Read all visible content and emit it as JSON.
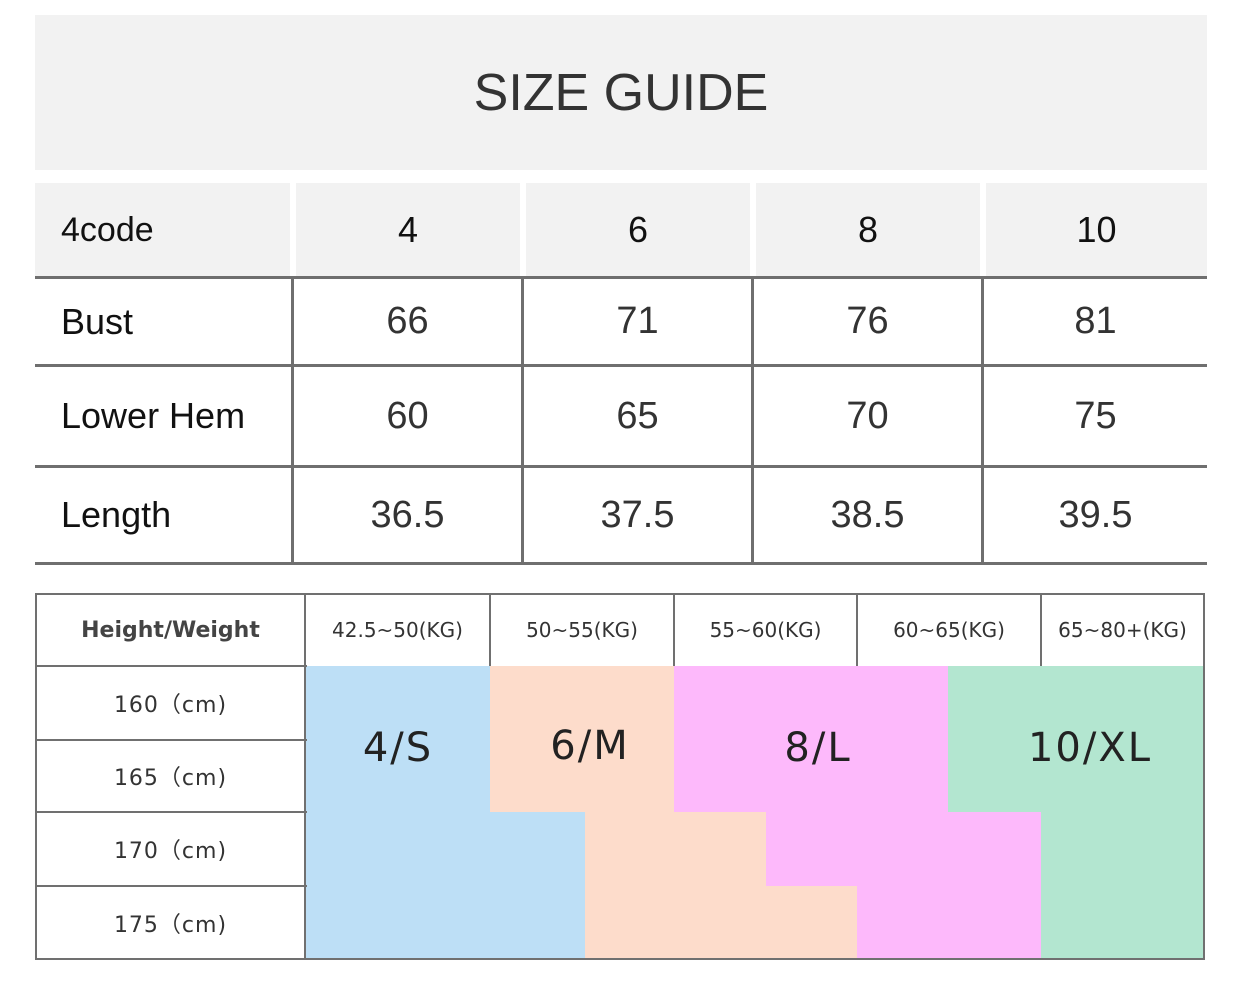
{
  "title": "SIZE GUIDE",
  "measurements": {
    "headers": [
      "4code",
      "4",
      "6",
      "8",
      "10"
    ],
    "rows": [
      {
        "label": "Bust",
        "values": [
          "66",
          "71",
          "76",
          "81"
        ]
      },
      {
        "label": "Lower Hem",
        "values": [
          "60",
          "65",
          "70",
          "75"
        ]
      },
      {
        "label": "Length",
        "values": [
          "36.5",
          "37.5",
          "38.5",
          "39.5"
        ]
      }
    ]
  },
  "fit_chart": {
    "corner_label": "Height/Weight",
    "weights": [
      "42.5~50(KG)",
      "50~55(KG)",
      "55~60(KG)",
      "60~65(KG)",
      "65~80+(KG)"
    ],
    "heights": [
      "160（cm)",
      "165（cm)",
      "170（cm)",
      "175（cm)"
    ],
    "sizes": [
      {
        "label": "4/S",
        "color": "#bddff6"
      },
      {
        "label": "6/M",
        "color": "#fddccb"
      },
      {
        "label": "8/L",
        "color": "#fdb9fb"
      },
      {
        "label": "10/XL",
        "color": "#b3e6d0"
      }
    ]
  }
}
